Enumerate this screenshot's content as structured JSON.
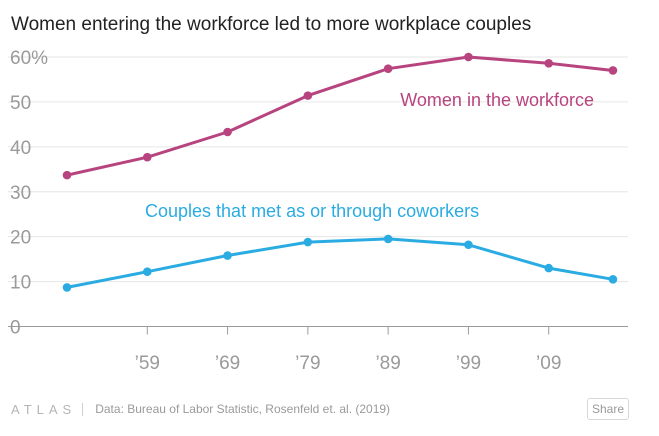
{
  "title": "Women entering the workforce led to more workplace couples",
  "footer": {
    "logo": "ATLAS",
    "source": "Data:  Bureau of Labor Statistic, Rosenfeld et. al. (2019)",
    "share_label": "Share"
  },
  "chart_data": {
    "type": "line",
    "title": "Women entering the workforce led to more workplace couples",
    "xlabel": "",
    "ylabel": "",
    "x": [
      1949,
      1959,
      1969,
      1979,
      1989,
      1999,
      2009,
      2017
    ],
    "xticks": [
      {
        "x": 1959,
        "label": "’59"
      },
      {
        "x": 1969,
        "label": "’69"
      },
      {
        "x": 1979,
        "label": "’79"
      },
      {
        "x": 1989,
        "label": "’89"
      },
      {
        "x": 1999,
        "label": "’99"
      },
      {
        "x": 2009,
        "label": "’09"
      }
    ],
    "yticks": [
      {
        "y": 0,
        "label": "0"
      },
      {
        "y": 10,
        "label": "10"
      },
      {
        "y": 20,
        "label": "20"
      },
      {
        "y": 30,
        "label": "30"
      },
      {
        "y": 40,
        "label": "40"
      },
      {
        "y": 50,
        "label": "50"
      },
      {
        "y": 60,
        "label": "60%"
      }
    ],
    "ylim": [
      0,
      60
    ],
    "grid": true,
    "series": [
      {
        "name": "Women in the workforce",
        "color": "#b8447f",
        "values": [
          33.7,
          37.7,
          43.3,
          51.4,
          57.4,
          60.0,
          58.6,
          57.0
        ]
      },
      {
        "name": "Couples that met as or through coworkers",
        "color": "#2aace2",
        "values": [
          8.7,
          12.2,
          15.8,
          18.8,
          19.5,
          18.2,
          13.0,
          10.5
        ]
      }
    ]
  }
}
